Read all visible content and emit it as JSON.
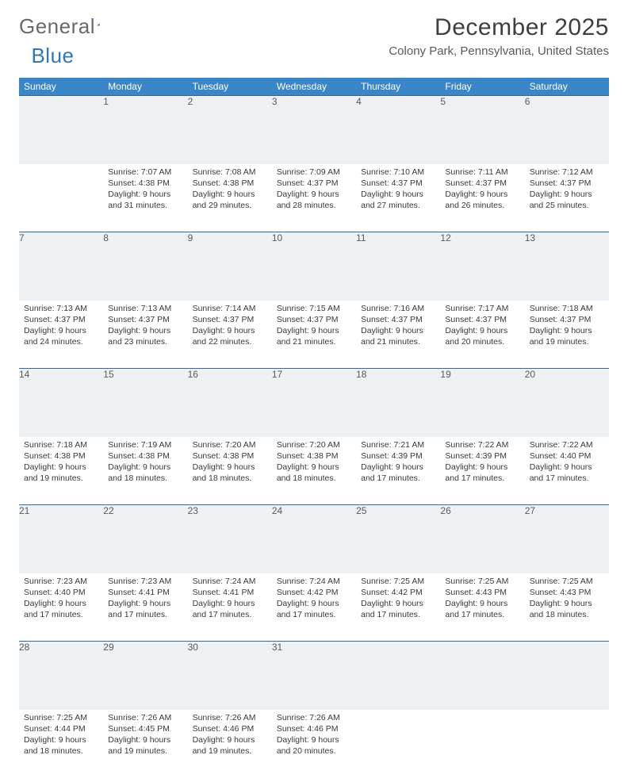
{
  "brand": {
    "word1": "General",
    "word2": "Blue"
  },
  "title": "December 2025",
  "location": "Colony Park, Pennsylvania, United States",
  "colors": {
    "header_bg": "#3a86c8",
    "header_text": "#ffffff",
    "daynum_bg": "#eef1f3",
    "rule": "#2f6aa3",
    "brand_gray": "#6a6a6a",
    "brand_blue": "#2f77b8"
  },
  "daysOfWeek": [
    "Sunday",
    "Monday",
    "Tuesday",
    "Wednesday",
    "Thursday",
    "Friday",
    "Saturday"
  ],
  "calendar": {
    "type": "table",
    "firstWeekday": 1,
    "weeks": [
      [
        null,
        {
          "n": "1",
          "sr": "7:07 AM",
          "ss": "4:38 PM",
          "dl": "9 hours and 31 minutes."
        },
        {
          "n": "2",
          "sr": "7:08 AM",
          "ss": "4:38 PM",
          "dl": "9 hours and 29 minutes."
        },
        {
          "n": "3",
          "sr": "7:09 AM",
          "ss": "4:37 PM",
          "dl": "9 hours and 28 minutes."
        },
        {
          "n": "4",
          "sr": "7:10 AM",
          "ss": "4:37 PM",
          "dl": "9 hours and 27 minutes."
        },
        {
          "n": "5",
          "sr": "7:11 AM",
          "ss": "4:37 PM",
          "dl": "9 hours and 26 minutes."
        },
        {
          "n": "6",
          "sr": "7:12 AM",
          "ss": "4:37 PM",
          "dl": "9 hours and 25 minutes."
        }
      ],
      [
        {
          "n": "7",
          "sr": "7:13 AM",
          "ss": "4:37 PM",
          "dl": "9 hours and 24 minutes."
        },
        {
          "n": "8",
          "sr": "7:13 AM",
          "ss": "4:37 PM",
          "dl": "9 hours and 23 minutes."
        },
        {
          "n": "9",
          "sr": "7:14 AM",
          "ss": "4:37 PM",
          "dl": "9 hours and 22 minutes."
        },
        {
          "n": "10",
          "sr": "7:15 AM",
          "ss": "4:37 PM",
          "dl": "9 hours and 21 minutes."
        },
        {
          "n": "11",
          "sr": "7:16 AM",
          "ss": "4:37 PM",
          "dl": "9 hours and 21 minutes."
        },
        {
          "n": "12",
          "sr": "7:17 AM",
          "ss": "4:37 PM",
          "dl": "9 hours and 20 minutes."
        },
        {
          "n": "13",
          "sr": "7:18 AM",
          "ss": "4:37 PM",
          "dl": "9 hours and 19 minutes."
        }
      ],
      [
        {
          "n": "14",
          "sr": "7:18 AM",
          "ss": "4:38 PM",
          "dl": "9 hours and 19 minutes."
        },
        {
          "n": "15",
          "sr": "7:19 AM",
          "ss": "4:38 PM",
          "dl": "9 hours and 18 minutes."
        },
        {
          "n": "16",
          "sr": "7:20 AM",
          "ss": "4:38 PM",
          "dl": "9 hours and 18 minutes."
        },
        {
          "n": "17",
          "sr": "7:20 AM",
          "ss": "4:38 PM",
          "dl": "9 hours and 18 minutes."
        },
        {
          "n": "18",
          "sr": "7:21 AM",
          "ss": "4:39 PM",
          "dl": "9 hours and 17 minutes."
        },
        {
          "n": "19",
          "sr": "7:22 AM",
          "ss": "4:39 PM",
          "dl": "9 hours and 17 minutes."
        },
        {
          "n": "20",
          "sr": "7:22 AM",
          "ss": "4:40 PM",
          "dl": "9 hours and 17 minutes."
        }
      ],
      [
        {
          "n": "21",
          "sr": "7:23 AM",
          "ss": "4:40 PM",
          "dl": "9 hours and 17 minutes."
        },
        {
          "n": "22",
          "sr": "7:23 AM",
          "ss": "4:41 PM",
          "dl": "9 hours and 17 minutes."
        },
        {
          "n": "23",
          "sr": "7:24 AM",
          "ss": "4:41 PM",
          "dl": "9 hours and 17 minutes."
        },
        {
          "n": "24",
          "sr": "7:24 AM",
          "ss": "4:42 PM",
          "dl": "9 hours and 17 minutes."
        },
        {
          "n": "25",
          "sr": "7:25 AM",
          "ss": "4:42 PM",
          "dl": "9 hours and 17 minutes."
        },
        {
          "n": "26",
          "sr": "7:25 AM",
          "ss": "4:43 PM",
          "dl": "9 hours and 17 minutes."
        },
        {
          "n": "27",
          "sr": "7:25 AM",
          "ss": "4:43 PM",
          "dl": "9 hours and 18 minutes."
        }
      ],
      [
        {
          "n": "28",
          "sr": "7:25 AM",
          "ss": "4:44 PM",
          "dl": "9 hours and 18 minutes."
        },
        {
          "n": "29",
          "sr": "7:26 AM",
          "ss": "4:45 PM",
          "dl": "9 hours and 19 minutes."
        },
        {
          "n": "30",
          "sr": "7:26 AM",
          "ss": "4:46 PM",
          "dl": "9 hours and 19 minutes."
        },
        {
          "n": "31",
          "sr": "7:26 AM",
          "ss": "4:46 PM",
          "dl": "9 hours and 20 minutes."
        },
        null,
        null,
        null
      ]
    ]
  },
  "labels": {
    "sunrise": "Sunrise:",
    "sunset": "Sunset:",
    "daylight": "Daylight:"
  }
}
